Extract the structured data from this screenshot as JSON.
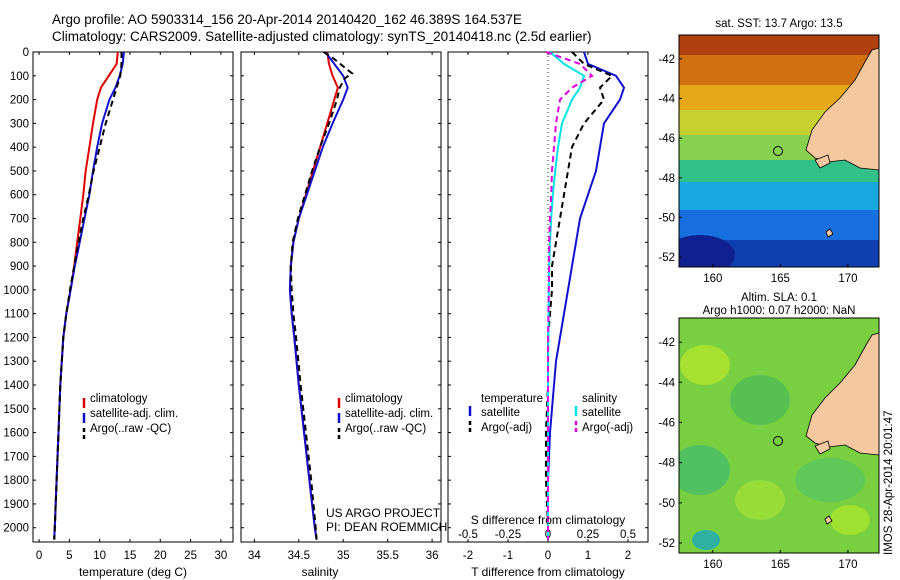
{
  "header": {
    "line1": "Argo profile: AO 5903314_156 20-Apr-2014 20140420_162 46.389S 164.537E",
    "line2": "Climatology: CARS2009. Satellite-adjusted climatology: synTS_20140418.nc (2.5d earlier)"
  },
  "footer": {
    "project": "US ARGO PROJECT",
    "pi": "PI: DEAN ROEMMICH",
    "stamp": "IMOS 28-Apr-2014 20:01:47"
  },
  "colors": {
    "climatology": "#e00000",
    "satellite": "#1010d0",
    "argo": "#000000",
    "s_satellite": "#00e5e5",
    "s_argo": "#e000e0"
  },
  "chart_data": [
    {
      "id": "temperature",
      "type": "line",
      "xlabel": "temperature (deg C)",
      "ylabel": "",
      "xlim": [
        -1,
        32
      ],
      "ylim": [
        2060,
        0
      ],
      "xticks": [
        0,
        5,
        10,
        15,
        20,
        25,
        30
      ],
      "yticks": [
        0,
        100,
        200,
        300,
        400,
        500,
        600,
        700,
        800,
        900,
        1000,
        1100,
        1200,
        1300,
        1400,
        1500,
        1600,
        1700,
        1800,
        1900,
        2000
      ],
      "legend": [
        "climatology",
        "satellite-adj. clim.",
        "Argo(..raw -QC)"
      ],
      "legend_position": "lower-right",
      "series": [
        {
          "name": "climatology",
          "color": "#e00000",
          "style": "solid",
          "depth": [
            0,
            50,
            100,
            150,
            200,
            300,
            400,
            500,
            600,
            700,
            800,
            900,
            1000,
            1100,
            1200,
            1400,
            1600,
            1800,
            2000,
            2050
          ],
          "values": [
            13.0,
            12.8,
            11.5,
            10.2,
            9.6,
            8.9,
            8.3,
            7.7,
            7.3,
            6.8,
            6.3,
            5.8,
            5.2,
            4.5,
            4.0,
            3.5,
            3.2,
            2.9,
            2.6,
            2.5
          ]
        },
        {
          "name": "satellite-adj. clim.",
          "color": "#1010d0",
          "style": "solid",
          "depth": [
            0,
            50,
            100,
            150,
            200,
            300,
            400,
            500,
            600,
            700,
            800,
            900,
            1000,
            1100,
            1200,
            1400,
            1600,
            1800,
            2000,
            2050
          ],
          "values": [
            14.0,
            13.8,
            13.3,
            12.6,
            11.6,
            10.4,
            9.6,
            8.9,
            8.3,
            7.5,
            6.7,
            5.9,
            5.2,
            4.5,
            4.0,
            3.5,
            3.2,
            2.9,
            2.6,
            2.5
          ]
        },
        {
          "name": "Argo(..raw -QC)",
          "color": "#000000",
          "style": "dashed",
          "depth": [
            0,
            50,
            100,
            150,
            200,
            300,
            400,
            500,
            600,
            700,
            800,
            900,
            1000,
            1100,
            1200,
            1400,
            1600,
            1800,
            2000,
            2050
          ],
          "values": [
            13.6,
            13.6,
            13.4,
            12.8,
            12.2,
            11.0,
            10.0,
            9.0,
            8.2,
            7.3,
            6.5,
            5.8,
            5.1,
            4.5,
            4.0,
            3.5,
            3.2,
            2.9,
            2.6,
            2.5
          ]
        }
      ]
    },
    {
      "id": "salinity",
      "type": "line",
      "xlabel": "salinity",
      "ylabel": "",
      "xlim": [
        33.85,
        36.1
      ],
      "ylim": [
        2060,
        0
      ],
      "xticks": [
        34,
        34.5,
        35,
        35.5,
        36
      ],
      "legend": [
        "climatology",
        "satellite-adj. clim.",
        "Argo(..raw -QC)"
      ],
      "legend_position": "lower-right",
      "series": [
        {
          "name": "climatology",
          "color": "#e00000",
          "style": "solid",
          "depth": [
            0,
            50,
            100,
            150,
            200,
            300,
            400,
            500,
            600,
            700,
            800,
            900,
            1000,
            1100,
            1200,
            1400,
            1600,
            1800,
            2000,
            2050
          ],
          "values": [
            34.82,
            34.84,
            34.88,
            34.94,
            34.9,
            34.82,
            34.74,
            34.66,
            34.58,
            34.5,
            34.44,
            34.41,
            34.4,
            34.42,
            34.45,
            34.5,
            34.56,
            34.62,
            34.68,
            34.7
          ]
        },
        {
          "name": "satellite-adj. clim.",
          "color": "#1010d0",
          "style": "solid",
          "depth": [
            0,
            50,
            100,
            150,
            200,
            300,
            400,
            500,
            600,
            700,
            800,
            900,
            1000,
            1100,
            1200,
            1400,
            1600,
            1800,
            2000,
            2050
          ],
          "values": [
            34.8,
            34.9,
            35.0,
            35.05,
            35.0,
            34.88,
            34.77,
            34.68,
            34.59,
            34.5,
            34.44,
            34.41,
            34.4,
            34.42,
            34.45,
            34.5,
            34.56,
            34.62,
            34.68,
            34.7
          ]
        },
        {
          "name": "Argo(..raw -QC)",
          "color": "#000000",
          "style": "dashed",
          "depth": [
            0,
            30,
            60,
            90,
            110,
            150,
            200,
            300,
            400,
            500,
            600,
            700,
            800,
            900,
            1000,
            1100,
            1200,
            1400,
            1600,
            1800,
            2000,
            2050
          ],
          "values": [
            34.78,
            34.9,
            35.0,
            35.1,
            35.02,
            34.96,
            34.93,
            34.84,
            34.74,
            34.65,
            34.57,
            34.49,
            34.43,
            34.41,
            34.42,
            34.44,
            34.47,
            34.52,
            34.58,
            34.64,
            34.69,
            34.7
          ]
        }
      ]
    },
    {
      "id": "differences",
      "type": "line",
      "xlabel": "T difference from climatology",
      "x2label": "S difference from climatology",
      "xlim": [
        -2.5,
        2.5
      ],
      "ylim": [
        2060,
        0
      ],
      "xticks": [
        -2,
        -1,
        0,
        1,
        2
      ],
      "x2ticks": [
        "-0.5",
        "-0.25",
        "0",
        "0.25",
        "0.5"
      ],
      "x2tick_values_T": [
        -2,
        -1,
        0,
        1,
        2
      ],
      "legend_groups": [
        "temperature",
        "salinity"
      ],
      "legend": [
        "satellite",
        "Argo(-adj)",
        "satellite",
        "Argo(-adj)"
      ],
      "legend_position": "lower-center",
      "series": [
        {
          "name": "temperature satellite",
          "color": "#1010d0",
          "style": "solid",
          "depth": [
            0,
            50,
            100,
            150,
            200,
            300,
            400,
            500,
            600,
            700,
            800,
            900,
            1000,
            1100,
            1200,
            1300,
            1400,
            1500,
            1600,
            1800,
            2000,
            2050
          ],
          "values": [
            0.9,
            1.0,
            1.7,
            1.9,
            1.8,
            1.4,
            1.3,
            1.2,
            1.0,
            0.8,
            0.7,
            0.6,
            0.5,
            0.4,
            0.3,
            0.2,
            0.15,
            0.1,
            0.05,
            0.0,
            0.0,
            0.0
          ]
        },
        {
          "name": "temperature Argo(-adj)",
          "color": "#000000",
          "style": "dashed",
          "depth": [
            0,
            50,
            100,
            150,
            200,
            300,
            400,
            500,
            600,
            700,
            800,
            900,
            1000,
            1100,
            1200,
            1400,
            1600,
            1800,
            2000,
            2050
          ],
          "values": [
            0.6,
            0.9,
            1.6,
            1.3,
            1.4,
            0.9,
            0.6,
            0.5,
            0.4,
            0.3,
            0.2,
            0.1,
            0.1,
            0.05,
            0.0,
            0.0,
            -0.05,
            -0.05,
            0.0,
            0.0
          ]
        },
        {
          "name": "salinity satellite",
          "color": "#00e5e5",
          "style": "solid",
          "depth": [
            0,
            50,
            100,
            150,
            200,
            300,
            400,
            500,
            600,
            700,
            800,
            900,
            1000,
            1200,
            1400,
            1600,
            1800,
            2000,
            2050
          ],
          "values": [
            0.05,
            0.4,
            0.9,
            0.8,
            0.6,
            0.35,
            0.25,
            0.18,
            0.12,
            0.08,
            0.05,
            0.03,
            0.02,
            0.01,
            0.0,
            0.0,
            0.0,
            0.0,
            0.0
          ]
        },
        {
          "name": "salinity Argo(-adj)",
          "color": "#e000e0",
          "style": "dashed",
          "depth": [
            0,
            50,
            100,
            150,
            200,
            300,
            400,
            500,
            600,
            700,
            800,
            1000,
            1200,
            1400,
            1600,
            1800,
            2000,
            2050
          ],
          "values": [
            -0.05,
            0.8,
            1.1,
            0.6,
            0.3,
            0.2,
            0.15,
            0.1,
            0.08,
            0.05,
            0.03,
            0.02,
            0.0,
            0.0,
            0.0,
            0.0,
            0.0,
            0.0
          ]
        }
      ]
    },
    {
      "id": "sst-map",
      "type": "heatmap",
      "title": "sat. SST: 13.7 Argo: 13.5",
      "xlim": [
        157.5,
        172.3
      ],
      "ylim": [
        -52.5,
        -40.8
      ],
      "xticks": [
        160,
        165,
        170
      ],
      "yticks": [
        -42,
        -44,
        -46,
        -48,
        -50,
        -52
      ],
      "profile_location": {
        "lon": 164.537,
        "lat": -46.389
      }
    },
    {
      "id": "sla-map",
      "type": "heatmap",
      "title": "Altim. SLA: 0.1",
      "subtitle": "Argo h1000: 0.07 h2000: NaN",
      "xlim": [
        157.5,
        172.3
      ],
      "ylim": [
        -52.5,
        -40.8
      ],
      "xticks": [
        160,
        165,
        170
      ],
      "yticks": [
        -42,
        -44,
        -46,
        -48,
        -50,
        -52
      ],
      "profile_location": {
        "lon": 164.537,
        "lat": -46.389
      }
    }
  ]
}
